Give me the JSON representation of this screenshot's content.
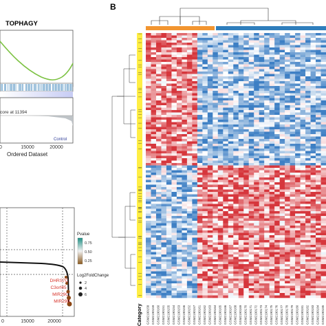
{
  "panel_b_letter": "B",
  "gsea": {
    "title_fragment": "TOPHAGY",
    "score_text": "core at 11394",
    "control_label": "Control",
    "x_ticks": [
      "0",
      "15000",
      "20000"
    ],
    "xlabel_fragment": "Ordered Dataset",
    "colors": {
      "curve": "#7cc242",
      "barcode": "#2e7bb4",
      "band": "#cfd4f5"
    }
  },
  "rank_plot": {
    "x_ticks": [
      "0",
      "15000",
      "20000"
    ],
    "gene_labels": [
      "DHRS7C",
      "C3orf45",
      "MIR29C",
      "MIR29B"
    ],
    "legend": {
      "pvalue_title": "Pvalue",
      "pvalue_ticks": [
        "0.75",
        "0.50",
        "0.25"
      ],
      "lfc_title": "Log2FoldChange",
      "lfc_ticks": [
        "2",
        "4",
        "6"
      ],
      "colors": {
        "high": "#1f8f84",
        "mid": "#f2f2f2",
        "low": "#8a5a1f"
      }
    },
    "colors": {
      "curve": "#111111",
      "label": "#d73027",
      "point": "#8b4513"
    }
  },
  "heatmap": {
    "category_label": "Category",
    "colors": {
      "group1": "#f29530",
      "group2": "#2f7ebc",
      "category_bar": "#ffee44",
      "high": "#d6363c",
      "low": "#3d7fc4"
    },
    "sample_labels": [
      "GSM2190158",
      "GSM2190159",
      "GSM2190160",
      "GSM2190151",
      "GSM2190155",
      "GSM2190154",
      "GSM2190153",
      "GSM2190156",
      "GSM2190152",
      "GSM2190157",
      "GSM2190161",
      "GSM2190162",
      "GSM2190163",
      "GSM2190164",
      "GSM2190165",
      "GSM2190166",
      "GSM2190167",
      "GSM2190168",
      "GSM2190169",
      "GSM2190170",
      "GSM2190171",
      "GSM2190172",
      "GSM2190173",
      "GSM2190174",
      "GSM2190175",
      "GSM2190176",
      "GSM2190177",
      "GSM2190178",
      "GSM2190179",
      "GSM2190180",
      "GSM2190181",
      "GSM2190182",
      "GSM2190183",
      "GSM2190184",
      "GSM2190185"
    ]
  }
}
